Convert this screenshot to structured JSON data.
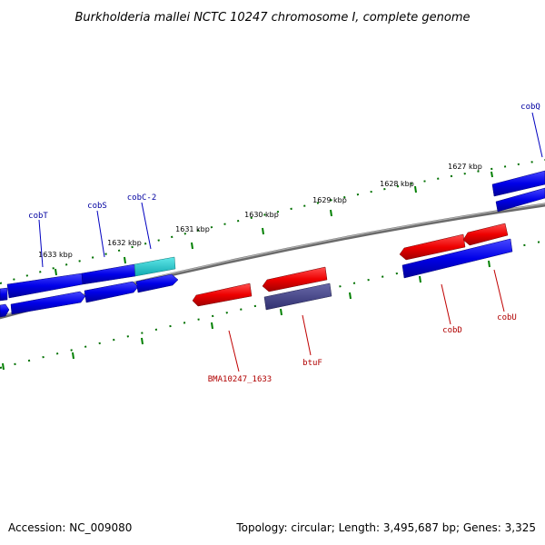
{
  "title": "Burkholderia mallei NCTC 10247 chromosome I, complete genome",
  "footer": {
    "accession": "Accession: NC_009080",
    "topology": "Topology: circular; Length: 3,495,687 bp; Genes: 3,325"
  },
  "kbp_labels": [
    "1627 kbp",
    "1628 kbp",
    "1629 kbp",
    "1630 kbp",
    "1631 kbp",
    "1632 kbp",
    "1633 kbp"
  ],
  "colors": {
    "forward_gene": "#1010e0",
    "reverse_gene": "#e01010",
    "highlight_gene": "#20c0c0",
    "other_gene": "#484890",
    "backbone": "#808080",
    "ticks": "#008000"
  },
  "genes": [
    {
      "label": "cobQ",
      "strand": "forward"
    },
    {
      "label": "cobT",
      "strand": "forward"
    },
    {
      "label": "cobS",
      "strand": "forward"
    },
    {
      "label": "cobC-2",
      "strand": "forward"
    },
    {
      "label": "cobD",
      "strand": "reverse"
    },
    {
      "label": "cobU",
      "strand": "reverse"
    },
    {
      "label": "btuF",
      "strand": "reverse"
    },
    {
      "label": "BMA10247_1633",
      "strand": "reverse"
    }
  ]
}
